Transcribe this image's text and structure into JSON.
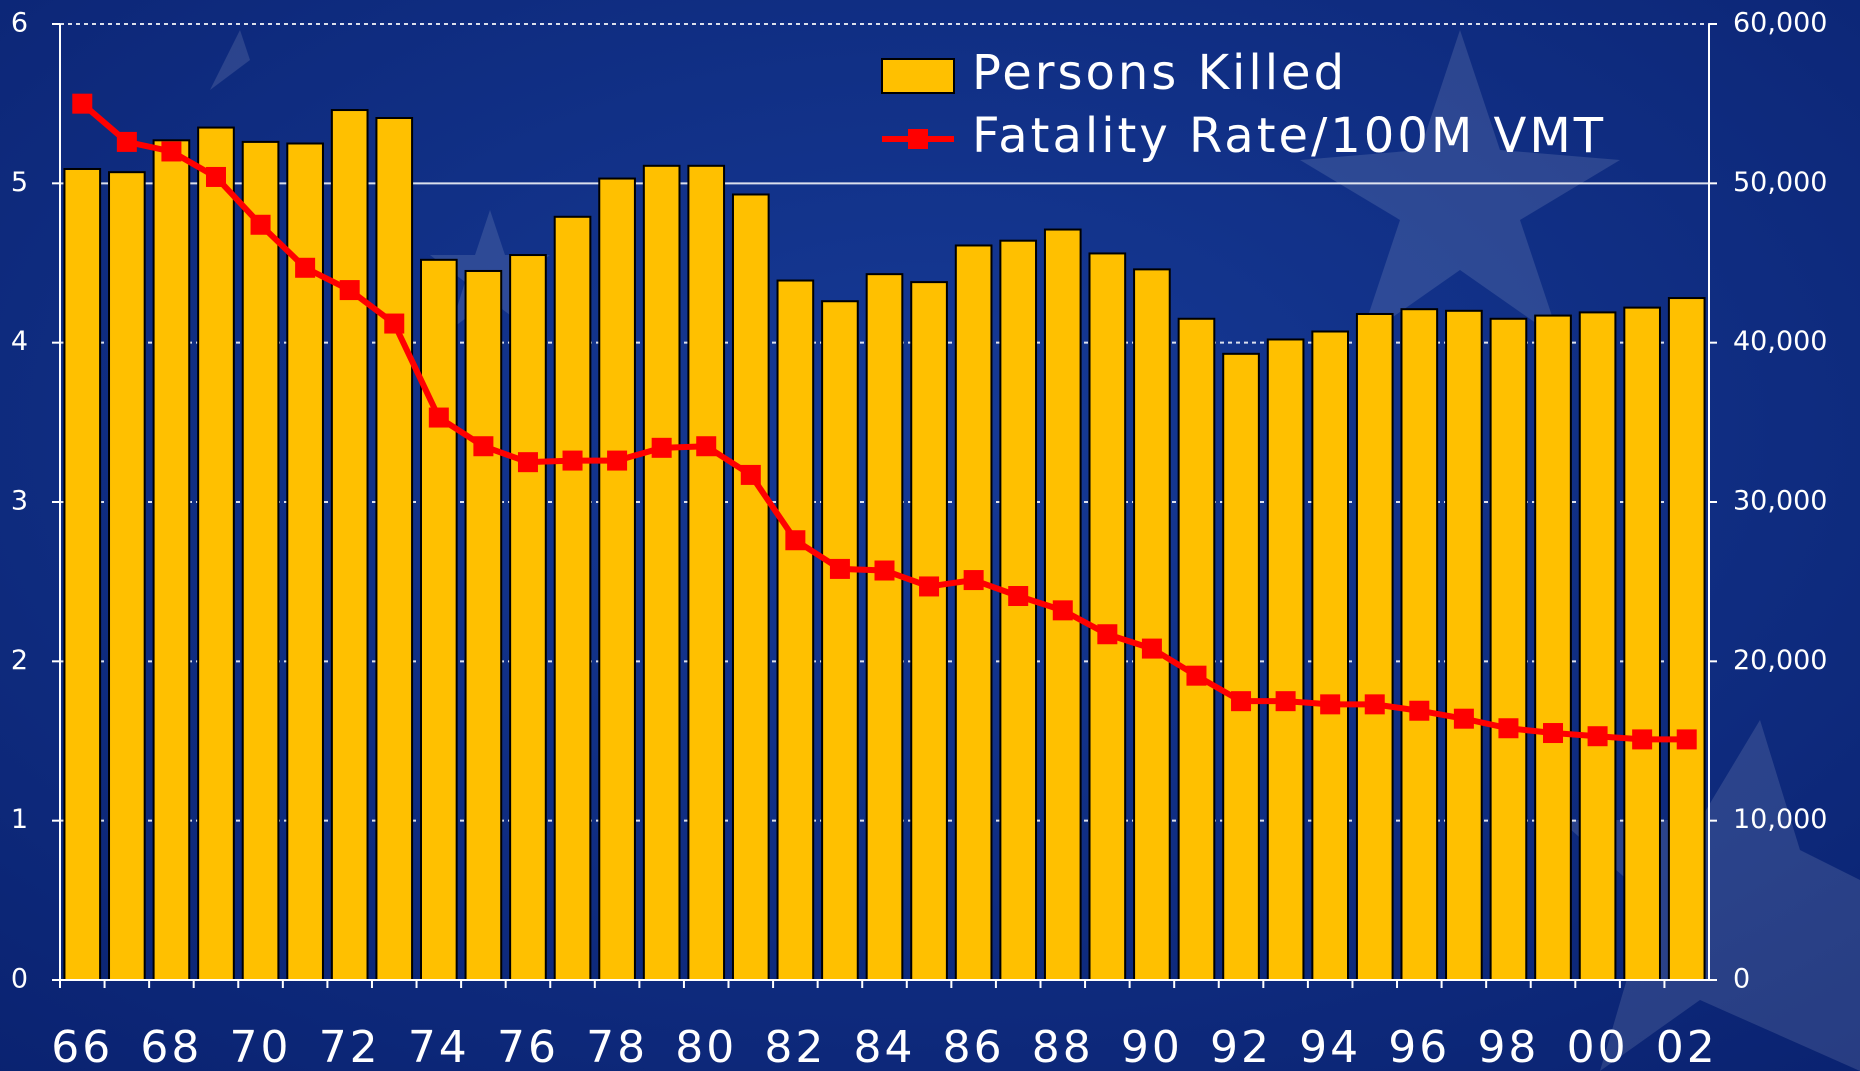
{
  "chart_data": {
    "type": "bar",
    "categories": [
      "66",
      null,
      "68",
      null,
      "70",
      null,
      "72",
      null,
      "74",
      null,
      "76",
      null,
      "78",
      null,
      "80",
      null,
      "82",
      null,
      "84",
      null,
      "86",
      null,
      "88",
      null,
      "90",
      null,
      "92",
      null,
      "94",
      null,
      "96",
      null,
      "98",
      null,
      "00",
      null,
      "02"
    ],
    "series": [
      {
        "name": "Persons Killed",
        "type": "bar",
        "axis": "y2",
        "color": "#ffc000",
        "values": [
          50900,
          50700,
          52700,
          53500,
          52600,
          52500,
          54600,
          54100,
          45200,
          44500,
          45500,
          47900,
          50300,
          51100,
          51100,
          49300,
          43900,
          42600,
          44300,
          43800,
          46100,
          46400,
          47100,
          45600,
          44600,
          41500,
          39300,
          40200,
          40700,
          41800,
          42100,
          42000,
          41500,
          41700,
          41900,
          42200,
          42800
        ]
      },
      {
        "name": "Fatality Rate/100M VMT",
        "type": "line",
        "axis": "y",
        "color": "#ff0000",
        "values": [
          5.5,
          5.26,
          5.2,
          5.04,
          4.74,
          4.47,
          4.33,
          4.12,
          3.53,
          3.35,
          3.25,
          3.26,
          3.26,
          3.34,
          3.35,
          3.17,
          2.76,
          2.58,
          2.57,
          2.47,
          2.51,
          2.41,
          2.32,
          2.17,
          2.08,
          1.91,
          1.75,
          1.75,
          1.73,
          1.73,
          1.69,
          1.64,
          1.58,
          1.55,
          1.53,
          1.51,
          1.51
        ]
      }
    ],
    "ylim": [
      0,
      6
    ],
    "yticks": [
      0,
      1,
      2,
      3,
      4,
      5,
      6
    ],
    "y2lim": [
      0,
      60000
    ],
    "y2ticks": [
      0,
      {
        "value": 10000,
        "label": "10,000"
      },
      {
        "value": 20000,
        "label": "20,000"
      },
      {
        "value": 30000,
        "label": "30,000"
      },
      {
        "value": 40000,
        "label": "40,000"
      },
      {
        "value": 50000,
        "label": "50,000"
      },
      {
        "value": 60000,
        "label": "60,000"
      }
    ],
    "grid": true,
    "legend": "top-right"
  }
}
